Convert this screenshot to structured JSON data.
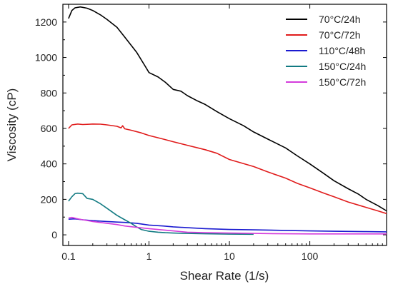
{
  "chart_data": {
    "type": "line",
    "xlabel": "Shear Rate (1/s)",
    "ylabel": "Viscosity (cP)",
    "x_scale": "log",
    "xlim": [
      0.085,
      900
    ],
    "ylim": [
      -60,
      1300
    ],
    "x_ticks": [
      {
        "value": 0.1,
        "label": "0.1"
      },
      {
        "value": 1,
        "label": "1"
      },
      {
        "value": 10,
        "label": "10"
      },
      {
        "value": 100,
        "label": "100"
      }
    ],
    "y_ticks": [
      {
        "value": 0,
        "label": "0"
      },
      {
        "value": 200,
        "label": "200"
      },
      {
        "value": 400,
        "label": "400"
      },
      {
        "value": 600,
        "label": "600"
      },
      {
        "value": 800,
        "label": "800"
      },
      {
        "value": 1000,
        "label": "1000"
      },
      {
        "value": 1200,
        "label": "1200"
      }
    ],
    "grid": false,
    "legend_position": "top-right",
    "series": [
      {
        "name": "70°C/24h",
        "color": "#000000",
        "points": [
          [
            0.1,
            1220
          ],
          [
            0.11,
            1265
          ],
          [
            0.12,
            1280
          ],
          [
            0.14,
            1285
          ],
          [
            0.17,
            1278
          ],
          [
            0.2,
            1265
          ],
          [
            0.25,
            1240
          ],
          [
            0.3,
            1215
          ],
          [
            0.4,
            1170
          ],
          [
            0.5,
            1115
          ],
          [
            0.7,
            1030
          ],
          [
            0.9,
            950
          ],
          [
            1.0,
            915
          ],
          [
            1.3,
            890
          ],
          [
            1.6,
            860
          ],
          [
            2.0,
            820
          ],
          [
            2.5,
            810
          ],
          [
            3.0,
            785
          ],
          [
            4.0,
            755
          ],
          [
            5.0,
            735
          ],
          [
            7.0,
            695
          ],
          [
            10,
            655
          ],
          [
            15,
            615
          ],
          [
            20,
            580
          ],
          [
            30,
            540
          ],
          [
            50,
            490
          ],
          [
            70,
            445
          ],
          [
            100,
            400
          ],
          [
            150,
            345
          ],
          [
            200,
            305
          ],
          [
            300,
            260
          ],
          [
            400,
            230
          ],
          [
            500,
            200
          ],
          [
            700,
            165
          ],
          [
            900,
            135
          ]
        ]
      },
      {
        "name": "70°C/72h",
        "color": "#e01b1b",
        "points": [
          [
            0.1,
            600
          ],
          [
            0.11,
            620
          ],
          [
            0.13,
            625
          ],
          [
            0.15,
            622
          ],
          [
            0.2,
            625
          ],
          [
            0.25,
            624
          ],
          [
            0.3,
            620
          ],
          [
            0.4,
            612
          ],
          [
            0.45,
            603
          ],
          [
            0.47,
            615
          ],
          [
            0.5,
            598
          ],
          [
            0.6,
            590
          ],
          [
            0.8,
            575
          ],
          [
            1.0,
            560
          ],
          [
            1.5,
            540
          ],
          [
            2.0,
            525
          ],
          [
            3.0,
            505
          ],
          [
            5.0,
            480
          ],
          [
            7.0,
            460
          ],
          [
            10,
            425
          ],
          [
            20,
            385
          ],
          [
            30,
            355
          ],
          [
            50,
            320
          ],
          [
            70,
            290
          ],
          [
            100,
            265
          ],
          [
            150,
            235
          ],
          [
            200,
            215
          ],
          [
            300,
            185
          ],
          [
            500,
            155
          ],
          [
            700,
            135
          ],
          [
            900,
            120
          ]
        ]
      },
      {
        "name": "110°C/48h",
        "color": "#1a1ad0",
        "points": [
          [
            0.1,
            88
          ],
          [
            0.12,
            90
          ],
          [
            0.15,
            85
          ],
          [
            0.2,
            80
          ],
          [
            0.3,
            75
          ],
          [
            0.4,
            72
          ],
          [
            0.5,
            70
          ],
          [
            0.7,
            65
          ],
          [
            1.0,
            55
          ],
          [
            1.5,
            50
          ],
          [
            2.0,
            45
          ],
          [
            3.0,
            40
          ],
          [
            5.0,
            35
          ],
          [
            10,
            30
          ],
          [
            20,
            28
          ],
          [
            50,
            25
          ],
          [
            100,
            22
          ],
          [
            200,
            20
          ],
          [
            500,
            18
          ],
          [
            900,
            17
          ]
        ]
      },
      {
        "name": "150°C/24h",
        "color": "#117a82",
        "points": [
          [
            0.1,
            190
          ],
          [
            0.11,
            215
          ],
          [
            0.12,
            232
          ],
          [
            0.13,
            235
          ],
          [
            0.15,
            232
          ],
          [
            0.17,
            205
          ],
          [
            0.2,
            200
          ],
          [
            0.25,
            175
          ],
          [
            0.3,
            150
          ],
          [
            0.4,
            110
          ],
          [
            0.5,
            85
          ],
          [
            0.6,
            65
          ],
          [
            0.7,
            45
          ],
          [
            0.8,
            30
          ],
          [
            1.0,
            20
          ],
          [
            1.3,
            15
          ],
          [
            1.6,
            12
          ],
          [
            2.0,
            10
          ],
          [
            3.0,
            8
          ],
          [
            5.0,
            6
          ],
          [
            10,
            4
          ],
          [
            20,
            3
          ]
        ]
      },
      {
        "name": "150°C/72h",
        "color": "#d43cdc",
        "points": [
          [
            0.1,
            95
          ],
          [
            0.11,
            98
          ],
          [
            0.13,
            90
          ],
          [
            0.15,
            85
          ],
          [
            0.2,
            75
          ],
          [
            0.3,
            65
          ],
          [
            0.4,
            58
          ],
          [
            0.5,
            50
          ],
          [
            0.7,
            42
          ],
          [
            1.0,
            35
          ],
          [
            2.0,
            22
          ],
          [
            3.0,
            15
          ],
          [
            5.0,
            12
          ],
          [
            10,
            10
          ],
          [
            20,
            8
          ],
          [
            50,
            6
          ],
          [
            100,
            5
          ],
          [
            200,
            5
          ],
          [
            500,
            5
          ],
          [
            900,
            5
          ]
        ]
      }
    ]
  }
}
